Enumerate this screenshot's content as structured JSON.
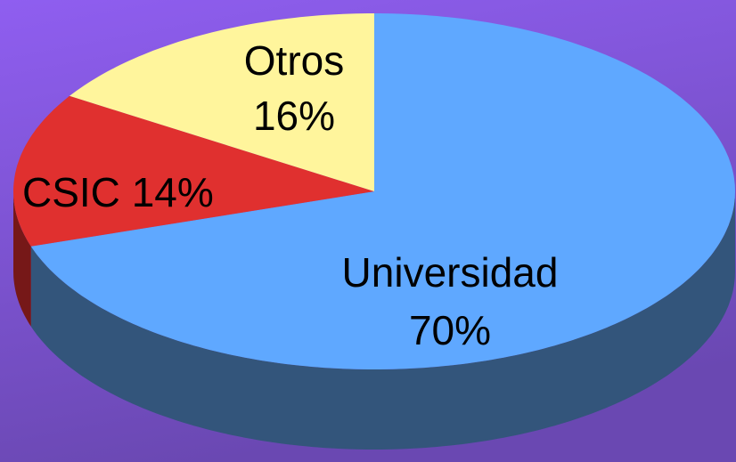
{
  "chart_data": {
    "type": "pie",
    "categories": [
      "Universidad",
      "CSIC",
      "Otros"
    ],
    "values": [
      70,
      14,
      16
    ],
    "value_labels": [
      "70%",
      "14%",
      "16%"
    ],
    "colors": [
      "#5fa8ff",
      "#e0302f",
      "#fff59c"
    ],
    "side_colors": [
      "#33557b",
      "#761818",
      "#8a8450"
    ]
  }
}
